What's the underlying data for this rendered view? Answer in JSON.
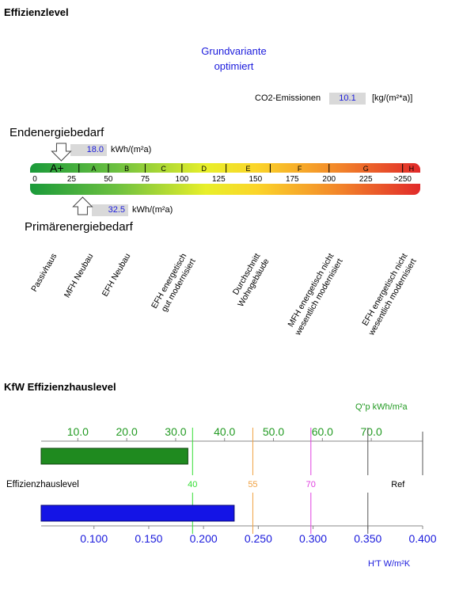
{
  "titles": {
    "effizienz": "Effizienzlevel",
    "variant_line1": "Grundvariante",
    "variant_line2": "optimiert",
    "kfw": "KfW Effizienzhauslevel"
  },
  "co2": {
    "label": "CO2-Emissionen",
    "value": "10.1",
    "unit": "[kg/(m²*a)]"
  },
  "endenergie": {
    "label": "Endenergiebedarf",
    "value": "18.0",
    "unit": "kWh/(m²a)",
    "numeric": 18.0
  },
  "primaer": {
    "label": "Primärenergiebedarf",
    "value": "32.5",
    "unit": "kWh/(m²a)",
    "numeric": 32.5
  },
  "colors": {
    "accent_blue": "#1a1adc",
    "green_bar": "#1f8a1f",
    "blue_bar": "#1414e6",
    "kfw_green": "#229a22"
  },
  "chart_data": [
    {
      "type": "bar",
      "name": "energy-scale",
      "classes": [
        {
          "label": "A+",
          "from": 0,
          "to": 30
        },
        {
          "label": "A",
          "from": 30,
          "to": 50
        },
        {
          "label": "B",
          "from": 50,
          "to": 75
        },
        {
          "label": "C",
          "from": 75,
          "to": 100
        },
        {
          "label": "D",
          "from": 100,
          "to": 130
        },
        {
          "label": "E",
          "from": 130,
          "to": 160
        },
        {
          "label": "F",
          "from": 160,
          "to": 200
        },
        {
          "label": "G",
          "from": 200,
          "to": 250
        },
        {
          "label": "H",
          "from": 250,
          "to": 262
        }
      ],
      "ticks": [
        {
          "v": 0,
          "label": "0"
        },
        {
          "v": 25,
          "label": "25"
        },
        {
          "v": 50,
          "label": "50"
        },
        {
          "v": 75,
          "label": "75"
        },
        {
          "v": 100,
          "label": "100"
        },
        {
          "v": 125,
          "label": "125"
        },
        {
          "v": 150,
          "label": "150"
        },
        {
          "v": 175,
          "label": "175"
        },
        {
          "v": 200,
          "label": "200"
        },
        {
          "v": 225,
          "label": "225"
        },
        {
          "v": 250,
          "label": ">250"
        }
      ],
      "xlim": [
        0,
        262
      ],
      "markers": [
        {
          "name": "Endenergiebedarf",
          "value": 18.0
        },
        {
          "name": "Primärenergiebedarf",
          "value": 32.5
        }
      ],
      "reference_labels": [
        {
          "value": 15,
          "text": [
            "Passivhaus"
          ]
        },
        {
          "value": 40,
          "text": [
            "MFH Neubau"
          ]
        },
        {
          "value": 65,
          "text": [
            "EFH Neubau"
          ]
        },
        {
          "value": 100,
          "text": [
            "EFH energetisch",
            "gut modernisiert"
          ]
        },
        {
          "value": 150,
          "text": [
            "Durchschnitt",
            "Wohngebäude"
          ]
        },
        {
          "value": 200,
          "text": [
            "MFH energetisch nicht",
            "wesentlich modernisiert"
          ]
        },
        {
          "value": 250,
          "text": [
            "EFH energetisch nicht",
            "wesentlich modernisiert"
          ]
        }
      ]
    },
    {
      "type": "bar",
      "name": "kfw-qp",
      "axis_label": "Q\"p  kWh/m²a",
      "ticks": [
        10.0,
        20.0,
        30.0,
        40.0,
        50.0,
        60.0,
        70.0
      ],
      "tick_labels": [
        "10.0",
        "20.0",
        "30.0",
        "40.0",
        "50.0",
        "60.0",
        "70.0"
      ],
      "xlim": [
        2.5,
        80.5
      ],
      "value": 32.5
    },
    {
      "type": "bar",
      "name": "kfw-ht",
      "axis_label": "H'T  W/m²K",
      "ticks": [
        0.1,
        0.15,
        0.2,
        0.25,
        0.3,
        0.35,
        0.4
      ],
      "tick_labels": [
        "0.100",
        "0.150",
        "0.200",
        "0.250",
        "0.300",
        "0.350",
        "0.400"
      ],
      "xlim": [
        0.0518,
        0.4
      ],
      "value": 0.228
    }
  ],
  "kfw_levels": {
    "row_label": "Effizienzhauslevel",
    "lines": [
      {
        "label": "40",
        "value": 0.19,
        "color": "#33dd33"
      },
      {
        "label": "55",
        "value": 0.245,
        "color": "#f0a040"
      },
      {
        "label": "70",
        "value": 0.298,
        "color": "#e040e0"
      },
      {
        "label": "Ref",
        "value": 0.35,
        "color": "#555555"
      }
    ]
  }
}
